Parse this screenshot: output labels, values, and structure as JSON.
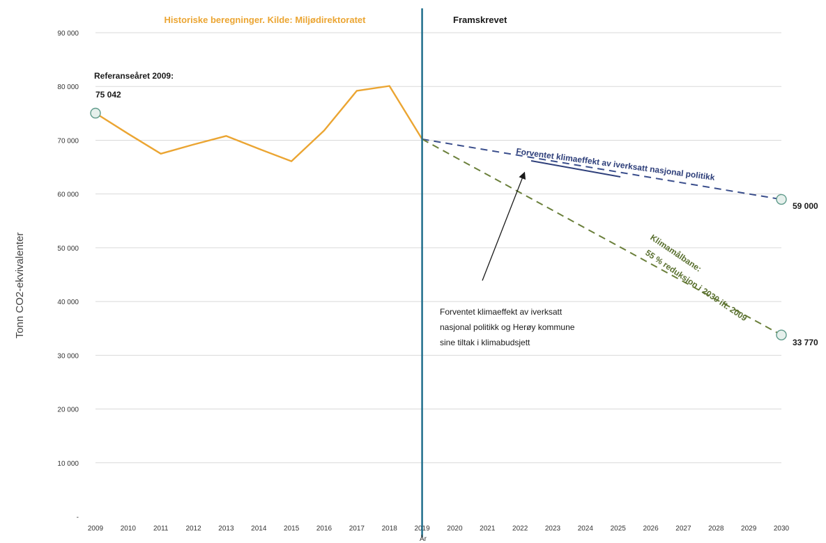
{
  "chart_data": {
    "type": "line",
    "x": [
      2009,
      2010,
      2011,
      2012,
      2013,
      2014,
      2015,
      2016,
      2017,
      2018,
      2019,
      2020,
      2021,
      2022,
      2023,
      2024,
      2025,
      2026,
      2027,
      2028,
      2029,
      2030
    ],
    "xlabel": "År",
    "ylabel": "Tonn CO2-ekvivalenter",
    "ylim": [
      0,
      90000
    ],
    "yticks": [
      "-",
      "10 000",
      "20 000",
      "30 000",
      "40 000",
      "50 000",
      "60 000",
      "70 000",
      "80 000",
      "90 000"
    ],
    "grid": true,
    "series": [
      {
        "key": "historical",
        "x": [
          2009,
          2010,
          2011,
          2012,
          2013,
          2014,
          2015,
          2016,
          2017,
          2018,
          2019
        ],
        "values": [
          75042,
          71200,
          67500,
          69200,
          70800,
          68400,
          66100,
          71800,
          79200,
          80100,
          70200
        ],
        "color": "#EBA532",
        "style": "solid"
      },
      {
        "key": "national_policy",
        "x": [
          2019,
          2030
        ],
        "values": [
          70200,
          59000
        ],
        "color": "#3A4E8C",
        "style": "dashed"
      },
      {
        "key": "target_path",
        "x": [
          2019,
          2030
        ],
        "values": [
          70200,
          33770
        ],
        "color": "#6A7F3A",
        "style": "dashed"
      }
    ],
    "markers": [
      {
        "x": 2009,
        "y": 75042
      },
      {
        "x": 2030,
        "y": 59000
      },
      {
        "x": 2030,
        "y": 33770
      }
    ],
    "divider": {
      "x": 2019,
      "color": "#1F6E8C"
    },
    "annotations": {
      "historical_header": "Historiske beregninger. Kilde: Miljødirektoratet",
      "projected_header": "Framskrevet",
      "reference_year_label": "Referanseåret 2009:",
      "reference_year_value": "75 042",
      "national_policy_label": "Forventet klimaeffekt av iverksatt nasjonal politikk",
      "national_policy_end_value": "59 000",
      "target_line1": "Klimamålbane:",
      "target_line2": "55 % reduksjon i 2030 ift. 2009",
      "target_end_value": "33 770",
      "combined_effect_lines": [
        "Forventet klimaeffekt av iverksatt",
        "nasjonal politikk og Herøy kommune",
        "sine tiltak i klimabudsjett"
      ]
    },
    "colors": {
      "historical": "#EBA532",
      "national": "#3A4E8C",
      "target": "#5A7030",
      "divider": "#1F6E8C",
      "marker_fill": "#E6F0EC",
      "marker_stroke": "#5E9A8A"
    }
  }
}
